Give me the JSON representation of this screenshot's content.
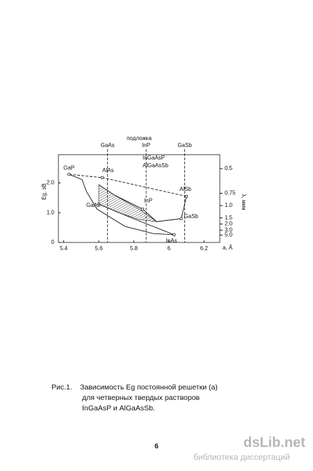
{
  "chart_data": {
    "type": "line",
    "title": "подложка",
    "x_label": "a, Å",
    "y_label": "Eg, эВ",
    "y2_label": "λ, мкм",
    "xlim": [
      5.37,
      6.29
    ],
    "xticks": [
      5.4,
      5.6,
      5.8,
      6.0,
      6.2
    ],
    "ylim": [
      0,
      2.95
    ],
    "yticks": [
      0,
      {
        "value": 1.0,
        "label": "1.0"
      },
      {
        "value": 2.0,
        "label": "2.0"
      }
    ],
    "y2ticks": [
      0.5,
      0.75,
      {
        "value": 1.0,
        "label": "1.0"
      },
      1.5,
      {
        "value": 2.0,
        "label": "2.0"
      },
      {
        "value": 3.0,
        "label": "3.0"
      },
      {
        "value": 5.0,
        "label": "5.0"
      }
    ],
    "substrates": [
      {
        "label": "GaAs",
        "x": 5.65
      },
      {
        "label": "InP",
        "x": 5.87
      },
      {
        "label": "GaSb",
        "x": 6.09
      }
    ],
    "annotations": [
      "InGaAsP",
      "AlGaAsSb"
    ],
    "points": [
      {
        "label": "GaP",
        "x": 5.43,
        "y": 2.29
      },
      {
        "label": "AlAs",
        "x": 5.62,
        "y": 2.18
      },
      {
        "label": "AlSb",
        "x": 6.1,
        "y": 1.55
      },
      {
        "label": "GaSb",
        "x": 6.07,
        "y": 0.8
      },
      {
        "label": "InAs",
        "x": 6.03,
        "y": 0.26
      },
      {
        "label": "GaAs",
        "x": 5.6,
        "y": 1.29
      },
      {
        "label": "InP",
        "x": 5.85,
        "y": 1.12
      }
    ],
    "lines": [
      {
        "style": "dashed",
        "x": [
          5.43,
          5.62,
          6.1
        ],
        "y": [
          2.29,
          2.18,
          1.55
        ]
      },
      {
        "style": "solid",
        "x": [
          6.1,
          6.07
        ],
        "y": [
          1.55,
          0.8
        ]
      },
      {
        "style": "solid",
        "x": [
          5.43,
          5.505,
          5.53,
          5.59,
          5.75,
          5.91,
          6.03
        ],
        "y": [
          2.29,
          2.11,
          1.71,
          1.12,
          0.54,
          0.3,
          0.26
        ]
      },
      {
        "style": "solid",
        "x": [
          5.6,
          5.69,
          5.85,
          5.93,
          6.07
        ],
        "y": [
          1.94,
          1.59,
          1.12,
          0.7,
          0.8
        ]
      },
      {
        "style": "solid",
        "x": [
          5.6,
          5.81,
          6.03
        ],
        "y": [
          1.29,
          0.77,
          0.26
        ]
      }
    ],
    "hatched_region": {
      "x": [
        5.6,
        5.69,
        5.83,
        5.93,
        5.83,
        5.71,
        5.6
      ],
      "y": [
        1.94,
        1.59,
        1.12,
        0.7,
        0.77,
        1.01,
        1.29
      ]
    },
    "grid": false
  },
  "caption": {
    "label": "Рис.1.",
    "lines": [
      "Зависимость Eg постоянной решетки (а)",
      "для четверных твердых растворов",
      "InGaAsP и AlGaAsSb."
    ]
  },
  "page_number": "6",
  "watermark": {
    "site": "dsLib.net",
    "subtitle": "библиотека диссертаций"
  }
}
